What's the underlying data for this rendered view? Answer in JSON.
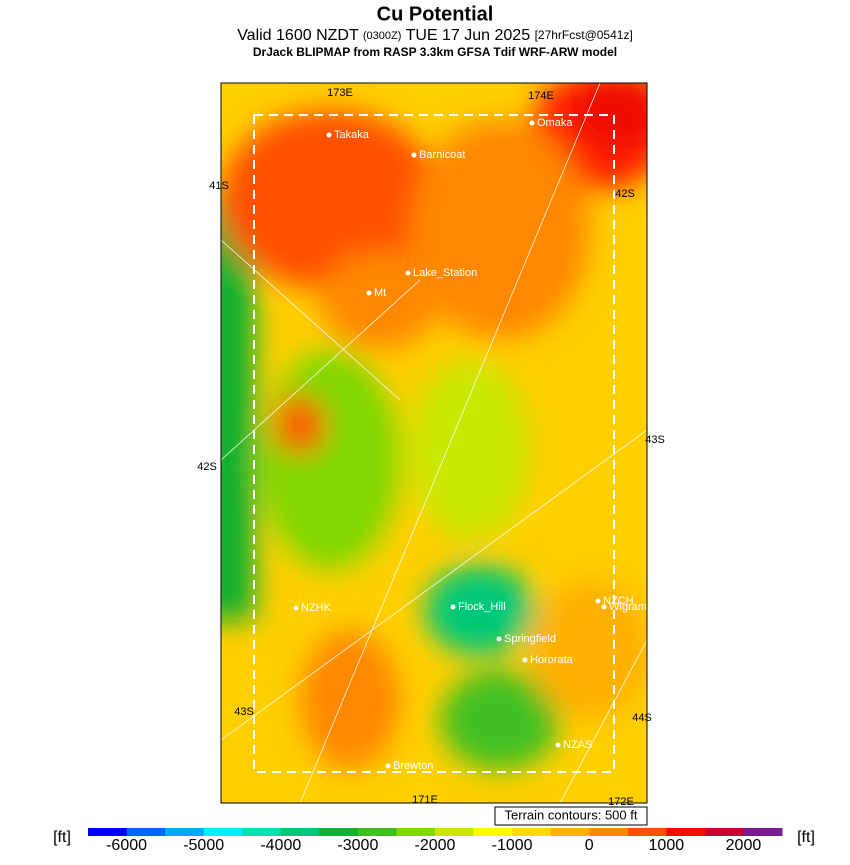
{
  "header": {
    "title": "Cu Potential",
    "valid": "Valid 1600 NZDT",
    "utc": "(0300Z)",
    "date": "TUE 17 Jun 2025",
    "forecast": "[27hrFcst@0541z]",
    "model": "DrJack BLIPMAP from RASP 3.3km GFSA Tdif WRF-ARW model"
  },
  "map": {
    "grid_labels": [
      "173E",
      "174E",
      "41S",
      "42S",
      "42S",
      "43S",
      "43S",
      "44S",
      "171E",
      "172E"
    ],
    "places": [
      "Takaka",
      "Barnicoat",
      "Omaka",
      "Lake_Station",
      "Mt",
      "NZHK",
      "Flock_Hill",
      "Springfield",
      "Hororata",
      "NZCH",
      "Wigram",
      "NZAS",
      "Brewton"
    ],
    "terrain_note": "Terrain contours: 500 ft"
  },
  "colorbar": {
    "unit": "[ft]",
    "range": [
      -6500,
      2500
    ],
    "ticks": [
      -6000,
      -5000,
      -4000,
      -3000,
      -2000,
      -1000,
      0,
      1000,
      2000
    ],
    "colors": [
      "#0000ff",
      "#0064ff",
      "#00aaff",
      "#00eeff",
      "#00e0b0",
      "#00c878",
      "#10b030",
      "#40c020",
      "#80d800",
      "#c8e800",
      "#ffff00",
      "#ffd800",
      "#ffb000",
      "#ff8800",
      "#ff5000",
      "#f01000",
      "#c80030",
      "#7a1a90"
    ]
  }
}
